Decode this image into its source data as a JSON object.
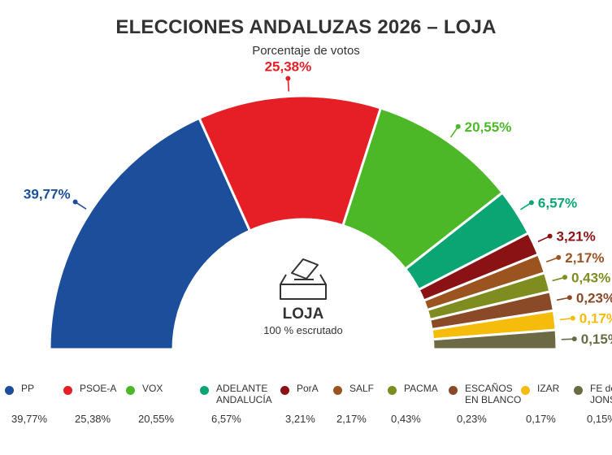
{
  "title": "ELECCIONES ANDALUZAS 2026 – LOJA",
  "subtitle": "Porcentaje de votos",
  "center": {
    "name": "LOJA",
    "status": "100 % escrutado",
    "icon": "ballot-box-icon"
  },
  "chart_data": {
    "type": "pie",
    "style": "semicircle-donut",
    "title": "ELECCIONES ANDALUZAS 2026 – LOJA",
    "subtitle": "Porcentaje de votos",
    "series": [
      {
        "name": "PP",
        "value": 39.77,
        "label": "39,77%",
        "color": "#1c4e9c"
      },
      {
        "name": "PSOE-A",
        "value": 25.38,
        "label": "25,38%",
        "color": "#e61e26"
      },
      {
        "name": "VOX",
        "value": 20.55,
        "label": "20,55%",
        "color": "#4cb828"
      },
      {
        "name": "ADELANTE ANDALUCÍA",
        "value": 6.57,
        "label": "6,57%",
        "color": "#0aa573"
      },
      {
        "name": "PorA",
        "value": 3.21,
        "label": "3,21%",
        "color": "#8a1214"
      },
      {
        "name": "SALF",
        "value": 2.17,
        "label": "2,17%",
        "color": "#9b5320"
      },
      {
        "name": "PACMA",
        "value": 0.43,
        "label": "0,43%",
        "color": "#7f8c1f"
      },
      {
        "name": "ESCAÑOS EN BLANCO",
        "value": 0.23,
        "label": "0,23%",
        "color": "#8a4a28"
      },
      {
        "name": "IZAR",
        "value": 0.17,
        "label": "0,17%",
        "color": "#f6bc0c"
      },
      {
        "name": "FE de JONS",
        "value": 0.15,
        "label": "0,15%",
        "color": "#6b6a45"
      }
    ]
  },
  "legend": {
    "labels": [
      "PP",
      "PSOE-A",
      "VOX",
      "ADELANTE\nANDALUCÍA",
      "PorA",
      "SALF",
      "PACMA",
      "ESCAÑOS\nEN BLANCO",
      "IZAR",
      "FE de\nJONS"
    ],
    "values": [
      "39,77%",
      "25,38%",
      "20,55%",
      "6,57%",
      "3,21%",
      "2,17%",
      "0,43%",
      "0,23%",
      "0,17%",
      "0,15%"
    ]
  }
}
